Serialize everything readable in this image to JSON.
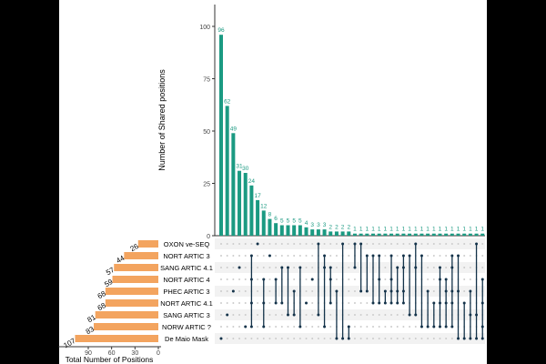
{
  "chart_data": {
    "type": "bar",
    "subtype": "upset",
    "intersection_bars": {
      "ylabel": "Number of Shared positions",
      "ylim": [
        0,
        110
      ],
      "yticks": [
        0,
        25,
        50,
        75,
        100
      ],
      "values": [
        96,
        62,
        49,
        31,
        30,
        24,
        17,
        12,
        8,
        6,
        5,
        5,
        5,
        5,
        4,
        3,
        3,
        3,
        2,
        2,
        2,
        2,
        1,
        1,
        1,
        1,
        1,
        1,
        1,
        1,
        1,
        1,
        1,
        1,
        1,
        1,
        1,
        1,
        1,
        1,
        1,
        1,
        1,
        1
      ],
      "color": "#1b9a82"
    },
    "sets": {
      "names": [
        "OXON ve-SEQ",
        "NORT ARTIC 3",
        "SANG ARTIC 4.1",
        "NORT ARTIC 4",
        "PHEC ARTIC 3",
        "NORT ARTIC 4.1",
        "SANG ARTIC 3",
        "NORW ARTIC ?",
        "De Maio Mask"
      ],
      "sizes": [
        26,
        44,
        57,
        59,
        68,
        68,
        81,
        83,
        107
      ],
      "xlabel": "Total Number of Positions",
      "xticks": [
        90,
        60,
        30,
        0
      ],
      "xlim": [
        0,
        110
      ],
      "color": "#f3a45f"
    },
    "matrix": {
      "members": [
        [
          8
        ],
        [
          6
        ],
        [
          4
        ],
        [
          2
        ],
        [
          7
        ],
        [
          1,
          3,
          5,
          7
        ],
        [
          0
        ],
        [
          3,
          5,
          7
        ],
        [
          1
        ],
        [
          3,
          5
        ],
        [
          2,
          5
        ],
        [
          2,
          6
        ],
        [
          4,
          6
        ],
        [
          2,
          7
        ],
        [
          5
        ],
        [
          3
        ],
        [
          0,
          6
        ],
        [
          1,
          2,
          7
        ],
        [
          2,
          3,
          5
        ],
        [
          4,
          8
        ],
        [
          0,
          8
        ],
        [
          7,
          8
        ],
        [
          0,
          2
        ],
        [
          0,
          4
        ],
        [
          1,
          4
        ],
        [
          1,
          5
        ],
        [
          1,
          3,
          5
        ],
        [
          4,
          5
        ],
        [
          1,
          3,
          4,
          5
        ],
        [
          2,
          4,
          5
        ],
        [
          1,
          2,
          4,
          5
        ],
        [
          1,
          6
        ],
        [
          0,
          2,
          6
        ],
        [
          1,
          7
        ],
        [
          4,
          7
        ],
        [
          5,
          7
        ],
        [
          2,
          3,
          5,
          7
        ],
        [
          3,
          4,
          5,
          7
        ],
        [
          1,
          2,
          4,
          5,
          7
        ],
        [
          1,
          4,
          8
        ],
        [
          5,
          8
        ],
        [
          4,
          6,
          8
        ],
        [
          0,
          6,
          8
        ],
        [
          3,
          5,
          7,
          8
        ]
      ],
      "dot_color": "#14334a",
      "empty_dot_color": "#cccccc"
    }
  }
}
